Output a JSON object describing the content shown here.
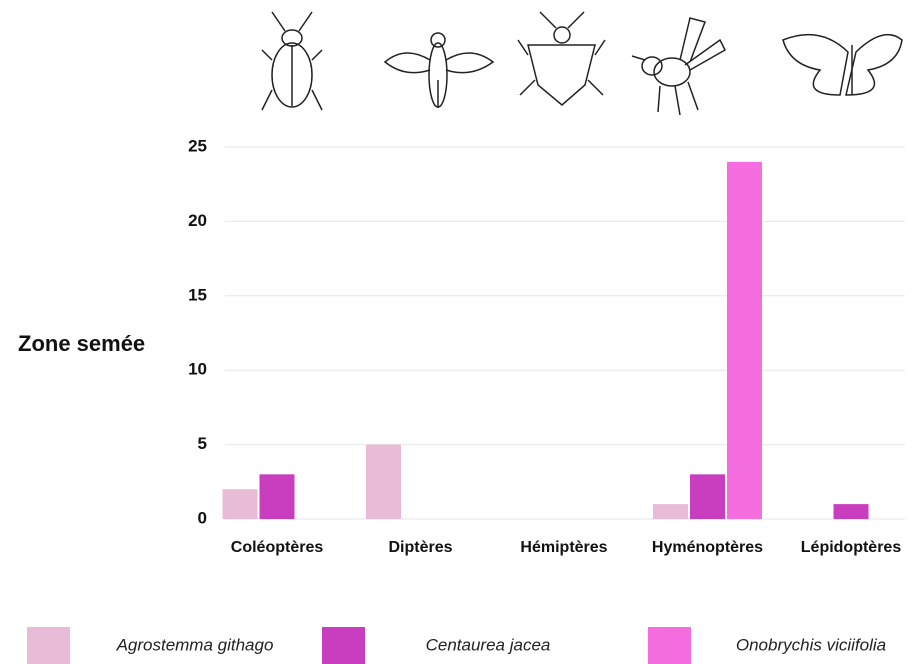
{
  "chart_data": {
    "type": "bar",
    "y_label": "Zone semée",
    "categories": [
      "Coléoptères",
      "Diptères",
      "Hémiptères",
      "Hyménoptères",
      "Lépidoptères"
    ],
    "series": [
      {
        "name": "Agrostemma githago",
        "color": "#e8bcd6",
        "values": [
          2,
          5,
          0,
          1,
          0
        ]
      },
      {
        "name": "Centaurea jacea",
        "color": "#c93dbf",
        "values": [
          3,
          0,
          0,
          3,
          1
        ]
      },
      {
        "name": "Onobrychis viciifolia",
        "color": "#f56ee0",
        "values": [
          0,
          0,
          0,
          24,
          0
        ]
      }
    ],
    "ylim": [
      0,
      25
    ],
    "yticks": [
      0,
      5,
      10,
      15,
      20,
      25
    ],
    "grid": true
  }
}
